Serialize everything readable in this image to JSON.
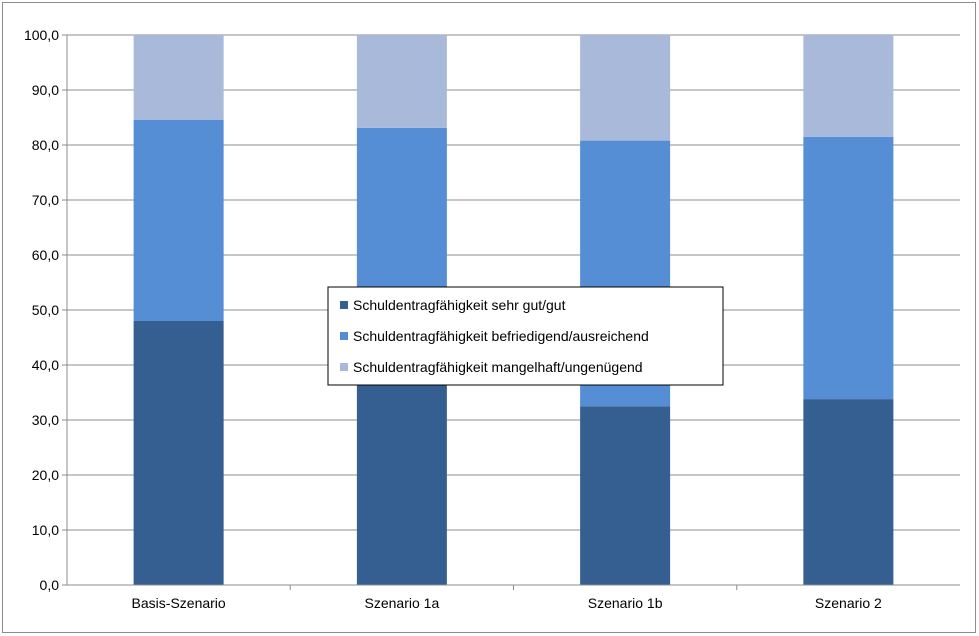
{
  "chart_data": {
    "type": "bar",
    "stacked": true,
    "categories": [
      "Basis-Szenario",
      "Szenario 1a",
      "Szenario 1b",
      "Szenario 2"
    ],
    "series": [
      {
        "name": "Schuldentragfähigkeit sehr gut/gut",
        "color": "#355f91",
        "values": [
          48.0,
          37.0,
          32.5,
          33.8
        ]
      },
      {
        "name": "Schuldentragfähigkeit befriedigend/ausreichend",
        "color": "#558ed5",
        "values": [
          36.6,
          46.1,
          48.3,
          47.7
        ]
      },
      {
        "name": "Schuldentragfähigkeit mangelhaft/ungenügend",
        "color": "#a9b9d9",
        "values": [
          15.4,
          16.9,
          19.2,
          18.5
        ]
      }
    ],
    "ylim": [
      0,
      100
    ],
    "yticks": [
      "0,0",
      "10,0",
      "20,0",
      "30,0",
      "40,0",
      "50,0",
      "60,0",
      "70,0",
      "80,0",
      "90,0",
      "100,0"
    ],
    "xlabel": "",
    "ylabel": "",
    "grid": "horizontal",
    "legend_position": "center"
  }
}
